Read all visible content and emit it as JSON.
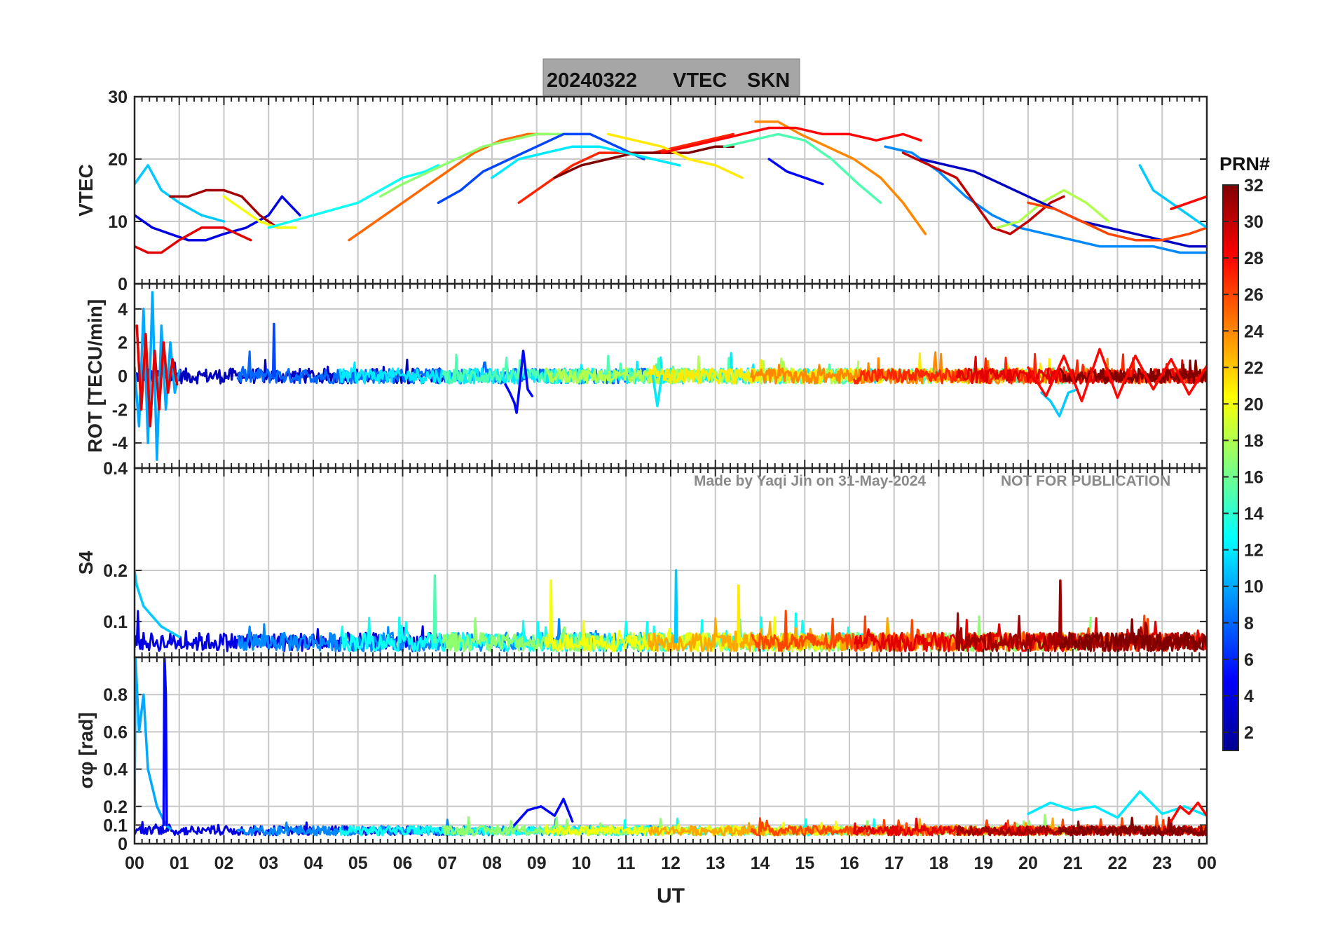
{
  "figure": {
    "title_date": "20240322",
    "title_quantity": "VTEC",
    "title_station": "SKN",
    "xlabel": "UT",
    "watermark_author": "Made by Yaqi Jin on 31-May-2024",
    "watermark_notice": "NOT FOR PUBLICATION",
    "colorbar": {
      "title": "PRN#",
      "range": [
        1,
        32
      ],
      "ticks": [
        "2",
        "4",
        "6",
        "8",
        "10",
        "12",
        "14",
        "16",
        "18",
        "20",
        "22",
        "24",
        "26",
        "28",
        "30",
        "32"
      ],
      "colormap": "jet",
      "colors": [
        "#00008f",
        "#0000ff",
        "#00ffff",
        "#ffff00",
        "#ff0000",
        "#800000"
      ]
    },
    "colors": {
      "grid": "#c8c8c8",
      "axis": "#262626",
      "title_box": "#a6a6a6",
      "watermark": "#8a8a8a"
    }
  },
  "chart_data": [
    {
      "type": "line",
      "panel": "vtec",
      "ylabel": "VTEC",
      "ylim": [
        0,
        30
      ],
      "y_ticks": [
        "0",
        "10",
        "20",
        "30"
      ],
      "xlim": [
        0,
        24
      ],
      "x_ticks": [
        "00",
        "01",
        "02",
        "03",
        "04",
        "05",
        "06",
        "07",
        "08",
        "09",
        "10",
        "11",
        "12",
        "13",
        "14",
        "15",
        "16",
        "17",
        "18",
        "19",
        "20",
        "21",
        "22",
        "23",
        "00"
      ],
      "series": [
        {
          "prn": 4,
          "x": [
            0.0,
            0.4,
            0.8,
            1.2,
            1.6,
            2.0,
            2.5,
            3.0,
            3.3,
            3.7
          ],
          "y": [
            11,
            9,
            8,
            7,
            7,
            8,
            9,
            11,
            14,
            11
          ]
        },
        {
          "prn": 11,
          "x": [
            0.0,
            0.3,
            0.6,
            1.0,
            1.5,
            2.0
          ],
          "y": [
            16,
            19,
            15,
            13,
            11,
            10
          ]
        },
        {
          "prn": 29,
          "x": [
            0.0,
            0.3,
            0.6,
            1.0,
            1.5,
            2.0,
            2.3,
            2.6
          ],
          "y": [
            6,
            5,
            5,
            7,
            9,
            9,
            8,
            7
          ]
        },
        {
          "prn": 31,
          "x": [
            0.8,
            1.2,
            1.6,
            2.0,
            2.4,
            2.8,
            3.2
          ],
          "y": [
            14,
            14,
            15,
            15,
            14,
            11,
            9
          ]
        },
        {
          "prn": 20,
          "x": [
            2.0,
            2.4,
            2.8,
            3.2,
            3.6
          ],
          "y": [
            14,
            12,
            10,
            9,
            9
          ]
        },
        {
          "prn": 13,
          "x": [
            3.0,
            3.5,
            4.0,
            4.5,
            5.0,
            5.5,
            6.0,
            6.5,
            6.8
          ],
          "y": [
            9,
            10,
            11,
            12,
            13,
            15,
            17,
            18,
            19
          ]
        },
        {
          "prn": 25,
          "x": [
            4.8,
            5.2,
            5.8,
            6.4,
            7.0,
            7.6,
            8.2,
            8.8,
            9.3
          ],
          "y": [
            7,
            9,
            12,
            15,
            18,
            21,
            23,
            24,
            24
          ]
        },
        {
          "prn": 17,
          "x": [
            5.5,
            6.0,
            6.6,
            7.2,
            7.8,
            8.4,
            9.0,
            9.6
          ],
          "y": [
            14,
            16,
            18,
            20,
            22,
            23,
            24,
            24
          ]
        },
        {
          "prn": 7,
          "x": [
            6.8,
            7.3,
            7.8,
            8.4,
            9.0,
            9.6,
            10.2,
            10.8,
            11.4
          ],
          "y": [
            13,
            15,
            18,
            20,
            22,
            24,
            24,
            22,
            20
          ]
        },
        {
          "prn": 27,
          "x": [
            8.6,
            9.2,
            9.8,
            10.4,
            11.0,
            11.6,
            12.2,
            12.8,
            13.4
          ],
          "y": [
            13,
            16,
            19,
            21,
            21,
            21,
            22,
            23,
            24
          ]
        },
        {
          "prn": 32,
          "x": [
            9.4,
            10.0,
            10.6,
            11.2,
            11.8,
            12.4,
            13.0,
            13.4
          ],
          "y": [
            17,
            19,
            20,
            21,
            21,
            21,
            22,
            22
          ]
        },
        {
          "prn": 12,
          "x": [
            8.0,
            8.6,
            9.2,
            9.8,
            10.4,
            11.0,
            11.6,
            12.2
          ],
          "y": [
            17,
            20,
            21,
            22,
            22,
            21,
            20,
            19
          ]
        },
        {
          "prn": 21,
          "x": [
            10.6,
            11.2,
            11.8,
            12.4,
            13.0,
            13.6
          ],
          "y": [
            24,
            23,
            22,
            20,
            19,
            17
          ]
        },
        {
          "prn": 24,
          "x": [
            13.9,
            14.4,
            14.9,
            15.5,
            16.1,
            16.7,
            17.2,
            17.7
          ],
          "y": [
            26,
            26,
            24,
            22,
            20,
            17,
            13,
            8
          ]
        },
        {
          "prn": 28,
          "x": [
            11.8,
            12.4,
            13.0,
            13.6,
            14.2,
            14.8,
            15.4,
            16.0,
            16.6,
            17.2,
            17.6
          ],
          "y": [
            21,
            22,
            23,
            24,
            25,
            25,
            24,
            24,
            23,
            24,
            23
          ]
        },
        {
          "prn": 15,
          "x": [
            13.2,
            13.8,
            14.4,
            15.0,
            15.6,
            16.2,
            16.7
          ],
          "y": [
            22,
            23,
            24,
            23,
            20,
            16,
            13
          ]
        },
        {
          "prn": 5,
          "x": [
            14.2,
            14.6,
            15.0,
            15.4
          ],
          "y": [
            20,
            18,
            17,
            16
          ]
        },
        {
          "prn": 9,
          "x": [
            16.8,
            17.4,
            18.0,
            18.6,
            19.2,
            19.8,
            20.4,
            21.0,
            21.6,
            22.2,
            22.8,
            23.4,
            24.0
          ],
          "y": [
            22,
            21,
            18,
            14,
            11,
            9,
            8,
            7,
            6,
            6,
            6,
            5,
            5
          ]
        },
        {
          "prn": 30,
          "x": [
            17.2,
            17.8,
            18.4,
            18.9,
            19.2,
            19.6,
            20.0,
            20.5,
            20.8
          ],
          "y": [
            21,
            19,
            17,
            12,
            9,
            8,
            10,
            13,
            14
          ]
        },
        {
          "prn": 18,
          "x": [
            19.3,
            19.8,
            20.3,
            20.8,
            21.3,
            21.8
          ],
          "y": [
            9,
            10,
            13,
            15,
            13,
            10
          ]
        },
        {
          "prn": 3,
          "x": [
            17.6,
            18.2,
            18.8,
            19.4,
            20.0,
            20.6,
            21.2,
            21.8,
            22.4,
            23.0,
            23.6,
            24.0
          ],
          "y": [
            20,
            19,
            18,
            16,
            14,
            12,
            10,
            9,
            8,
            7,
            6,
            6
          ]
        },
        {
          "prn": 26,
          "x": [
            20.0,
            20.6,
            21.2,
            21.8,
            22.4,
            23.0,
            23.6,
            24.0
          ],
          "y": [
            13,
            12,
            10,
            8,
            7,
            7,
            8,
            9
          ]
        },
        {
          "prn": 11,
          "x": [
            22.5,
            22.8,
            23.2,
            23.6,
            24.0
          ],
          "y": [
            19,
            15,
            13,
            11,
            9
          ]
        },
        {
          "prn": 28,
          "x": [
            23.2,
            23.6,
            24.0
          ],
          "y": [
            12,
            13,
            14
          ]
        }
      ]
    },
    {
      "type": "line",
      "panel": "rot",
      "ylabel": "ROT [TECU/min]",
      "ylim": [
        -5.5,
        5.5
      ],
      "y_ticks": [
        "-4",
        "-2",
        "0",
        "2",
        "4"
      ],
      "xlim": [
        0,
        24
      ],
      "series": [
        {
          "prn": 10,
          "x": [
            0.0,
            0.1,
            0.2,
            0.3,
            0.4,
            0.5,
            0.6,
            0.7,
            0.8,
            0.9,
            1.0
          ],
          "y": [
            0.5,
            -3,
            4,
            -4,
            5,
            -5,
            3,
            -2,
            2,
            -1,
            0.3
          ]
        },
        {
          "prn": 29,
          "x": [
            0.05,
            0.15,
            0.25,
            0.35,
            0.45,
            0.55,
            0.65,
            0.75,
            0.85,
            0.95
          ],
          "y": [
            3,
            -2,
            2.5,
            -3,
            1.5,
            -2,
            2,
            -1,
            1,
            -0.5
          ]
        },
        {
          "prn": 7,
          "x": [
            3.1,
            3.12,
            3.14
          ],
          "y": [
            0,
            3.1,
            0
          ]
        },
        {
          "prn": 5,
          "x": [
            8.3,
            8.4,
            8.5,
            8.55,
            8.6,
            8.7,
            8.8,
            8.9
          ],
          "y": [
            -0.5,
            -1,
            -1.6,
            -2.2,
            -1,
            1.5,
            -0.8,
            -1.2
          ]
        },
        {
          "prn": 12,
          "x": [
            11.6,
            11.7,
            11.8
          ],
          "y": [
            0,
            -1.8,
            0
          ]
        },
        {
          "prn": 11,
          "x": [
            20.3,
            20.5,
            20.7,
            20.9,
            21.1
          ],
          "y": [
            -1,
            -1.5,
            -2.4,
            -1,
            -0.8
          ]
        },
        {
          "prn": 28,
          "x": [
            20.0,
            20.4,
            20.8,
            21.2,
            21.6,
            22.0,
            22.4,
            22.8,
            23.2,
            23.6,
            24.0
          ],
          "y": [
            0.5,
            -1.2,
            1.2,
            -1.5,
            1.6,
            -1.3,
            1.2,
            -0.8,
            1.0,
            -1.1,
            0.6
          ]
        }
      ]
    },
    {
      "type": "line",
      "panel": "s4",
      "ylabel": "S4",
      "ylim": [
        0.03,
        0.4
      ],
      "y_ticks": [
        "0.1",
        "0.2",
        "0.4"
      ],
      "xlim": [
        0,
        24
      ],
      "series": [
        {
          "prn": 11,
          "x": [
            0.0,
            0.05,
            0.2,
            0.4,
            0.6,
            0.8,
            1.0
          ],
          "y": [
            0.2,
            0.17,
            0.13,
            0.11,
            0.09,
            0.08,
            0.07
          ]
        },
        {
          "prn": 15,
          "x": [
            6.7,
            6.72,
            6.74
          ],
          "y": [
            0.06,
            0.19,
            0.06
          ]
        },
        {
          "prn": 20,
          "x": [
            9.3,
            9.32,
            9.34
          ],
          "y": [
            0.06,
            0.18,
            0.06
          ]
        },
        {
          "prn": 11,
          "x": [
            12.1,
            12.12,
            12.14
          ],
          "y": [
            0.06,
            0.2,
            0.06
          ]
        },
        {
          "prn": 21,
          "x": [
            13.5,
            13.52,
            13.54
          ],
          "y": [
            0.06,
            0.17,
            0.06
          ]
        },
        {
          "prn": 31,
          "x": [
            20.7,
            20.72,
            20.74
          ],
          "y": [
            0.06,
            0.18,
            0.06
          ]
        }
      ],
      "typical_level": 0.06
    },
    {
      "type": "line",
      "panel": "sigma_phi",
      "ylabel": "σφ [rad]",
      "ylim": [
        0,
        1
      ],
      "y_ticks": [
        "0",
        "0.1",
        "0.2",
        "0.4",
        "0.6",
        "0.8"
      ],
      "xlim": [
        0,
        24
      ],
      "series": [
        {
          "prn": 10,
          "x": [
            0.0,
            0.02,
            0.1,
            0.2,
            0.3,
            0.4,
            0.5,
            0.6,
            0.7,
            0.8
          ],
          "y": [
            0.1,
            1.0,
            0.6,
            0.8,
            0.4,
            0.3,
            0.2,
            0.15,
            0.1,
            0.08
          ]
        },
        {
          "prn": 5,
          "x": [
            0.65,
            0.67,
            0.7,
            0.72
          ],
          "y": [
            0.1,
            1.0,
            0.8,
            0.1
          ]
        },
        {
          "prn": 5,
          "x": [
            8.5,
            8.8,
            9.1,
            9.4,
            9.6,
            9.8
          ],
          "y": [
            0.1,
            0.18,
            0.2,
            0.15,
            0.24,
            0.12
          ]
        },
        {
          "prn": 12,
          "x": [
            20.0,
            20.5,
            21.0,
            21.5,
            22.0,
            22.5,
            23.0,
            23.5,
            24.0
          ],
          "y": [
            0.16,
            0.22,
            0.18,
            0.2,
            0.14,
            0.28,
            0.16,
            0.2,
            0.15
          ]
        },
        {
          "prn": 28,
          "x": [
            23.2,
            23.4,
            23.6,
            23.8,
            24.0
          ],
          "y": [
            0.12,
            0.2,
            0.16,
            0.22,
            0.15
          ]
        }
      ],
      "typical_level": 0.07
    }
  ]
}
